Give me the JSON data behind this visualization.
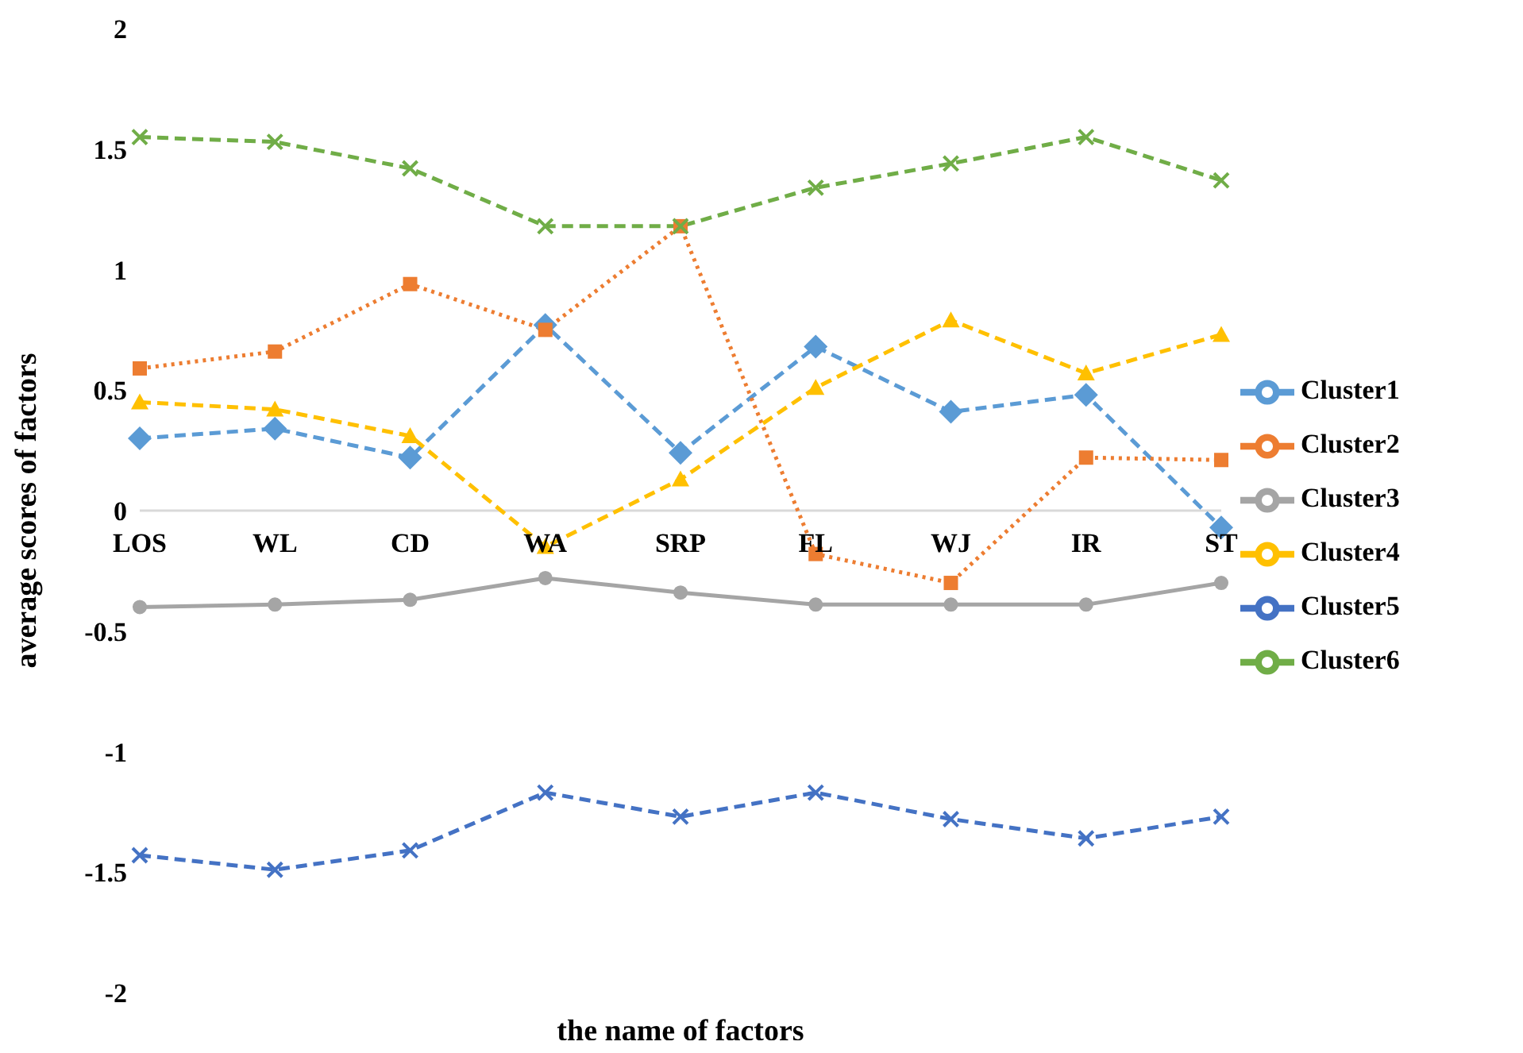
{
  "chart_data": {
    "type": "line",
    "xlabel": "the name of factors",
    "ylabel": "average scores of factors",
    "categories": [
      "LOS",
      "WL",
      "CD",
      "WA",
      "SRP",
      "FL",
      "WJ",
      "IR",
      "ST"
    ],
    "series": [
      {
        "name": "Cluster1",
        "color": "#5b9bd5",
        "marker": "diamond",
        "line_style": "dashed",
        "values": [
          0.3,
          0.34,
          0.22,
          0.77,
          0.24,
          0.68,
          0.41,
          0.48,
          -0.07
        ]
      },
      {
        "name": "Cluster2",
        "color": "#ed7d31",
        "marker": "square",
        "line_style": "dotted",
        "values": [
          0.59,
          0.66,
          0.94,
          0.75,
          1.18,
          -0.18,
          -0.3,
          0.22,
          0.21
        ]
      },
      {
        "name": "Cluster3",
        "color": "#a5a5a5",
        "marker": "circle",
        "line_style": "solid",
        "values": [
          -0.4,
          -0.39,
          -0.37,
          -0.28,
          -0.34,
          -0.39,
          -0.39,
          -0.39,
          -0.3
        ]
      },
      {
        "name": "Cluster4",
        "color": "#ffc000",
        "marker": "triangle",
        "line_style": "dashed",
        "values": [
          0.45,
          0.42,
          0.31,
          -0.15,
          0.13,
          0.51,
          0.79,
          0.57,
          0.73
        ]
      },
      {
        "name": "Cluster5",
        "color": "#4472c4",
        "marker": "cross",
        "line_style": "dashed",
        "values": [
          -1.43,
          -1.49,
          -1.41,
          -1.17,
          -1.27,
          -1.17,
          -1.28,
          -1.36,
          -1.27
        ]
      },
      {
        "name": "Cluster6",
        "color": "#70ad47",
        "marker": "cross",
        "line_style": "dashed",
        "values": [
          1.55,
          1.53,
          1.42,
          1.18,
          1.18,
          1.34,
          1.44,
          1.55,
          1.37
        ]
      }
    ],
    "ylim": [
      -2,
      2
    ],
    "yticks": [
      -2,
      -1.5,
      -1,
      -0.5,
      0,
      0.5,
      1,
      1.5,
      2
    ],
    "grid": false,
    "legend": "right"
  }
}
